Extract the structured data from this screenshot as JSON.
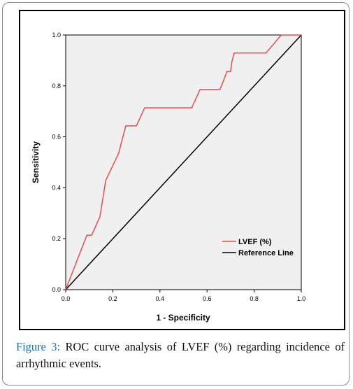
{
  "caption": {
    "label": "Figure 3:",
    "text": " ROC curve analysis of LVEF (%) regarding incidence of arrhythmic events."
  },
  "chart_data": {
    "type": "line",
    "xlabel": "1 - Specificity",
    "ylabel": "Sensitivity",
    "xlim": [
      0,
      1
    ],
    "ylim": [
      0,
      1
    ],
    "xticks": [
      "0.0",
      "0.2",
      "0.4",
      "0.6",
      "0.8",
      "1.0"
    ],
    "yticks": [
      "0.0",
      "0.2",
      "0.4",
      "0.6",
      "0.8",
      "1.0"
    ],
    "grid": false,
    "legend": "bottom-right",
    "series": [
      {
        "name": "LVEF (%)",
        "color": "#ee4b4b",
        "x": [
          0.0,
          0.09,
          0.11,
          0.145,
          0.17,
          0.225,
          0.255,
          0.3,
          0.335,
          0.535,
          0.57,
          0.655,
          0.685,
          0.7,
          0.705,
          0.715,
          0.85,
          0.915,
          1.0
        ],
        "y": [
          0.0,
          0.214,
          0.214,
          0.286,
          0.429,
          0.536,
          0.643,
          0.643,
          0.714,
          0.714,
          0.786,
          0.786,
          0.857,
          0.857,
          0.893,
          0.929,
          0.929,
          1.0,
          1.0
        ]
      },
      {
        "name": "Reference Line",
        "color": "#000000",
        "x": [
          0,
          1
        ],
        "y": [
          0,
          1
        ]
      }
    ]
  }
}
